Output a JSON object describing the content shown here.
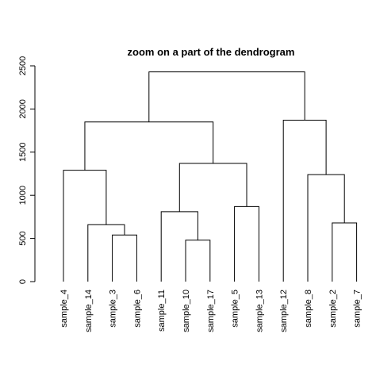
{
  "chart_data": {
    "type": "dendrogram",
    "title": "zoom on a part of the dendrogram",
    "ylabel": "",
    "xlabel": "",
    "ylim": [
      0,
      2500
    ],
    "yticks": [
      0,
      500,
      1000,
      1500,
      2000,
      2500
    ],
    "leaves": [
      "sample_4",
      "sample_14",
      "sample_3",
      "sample_6",
      "sample_11",
      "sample_10",
      "sample_17",
      "sample_5",
      "sample_13",
      "sample_12",
      "sample_8",
      "sample_2",
      "sample_7"
    ],
    "merges": [
      {
        "left": "sample_3",
        "right": "sample_6",
        "height": 540
      },
      {
        "left": "sample_14",
        "right": "sample_3+sample_6",
        "height": 660
      },
      {
        "left": "sample_4",
        "right": "sample_14+sample_3+sample_6",
        "height": 1290
      },
      {
        "left": "sample_10",
        "right": "sample_17",
        "height": 480
      },
      {
        "left": "sample_11",
        "right": "sample_10+sample_17",
        "height": 810
      },
      {
        "left": "sample_5",
        "right": "sample_13",
        "height": 870
      },
      {
        "left": "sample_11+sample_10+sample_17",
        "right": "sample_5+sample_13",
        "height": 1370
      },
      {
        "left": "sample_4+sample_14+sample_3+sample_6",
        "right": "sample_11+sample_10+sample_17+sample_5+sample_13",
        "height": 1850
      },
      {
        "left": "sample_2",
        "right": "sample_7",
        "height": 680
      },
      {
        "left": "sample_8",
        "right": "sample_2+sample_7",
        "height": 1240
      },
      {
        "left": "sample_12",
        "right": "sample_8+sample_2+sample_7",
        "height": 1870
      },
      {
        "left": "sample_4+sample_14+sample_3+sample_6+sample_11+sample_10+sample_17+sample_5+sample_13",
        "right": "sample_12+sample_8+sample_2+sample_7",
        "height": 2430
      }
    ]
  }
}
